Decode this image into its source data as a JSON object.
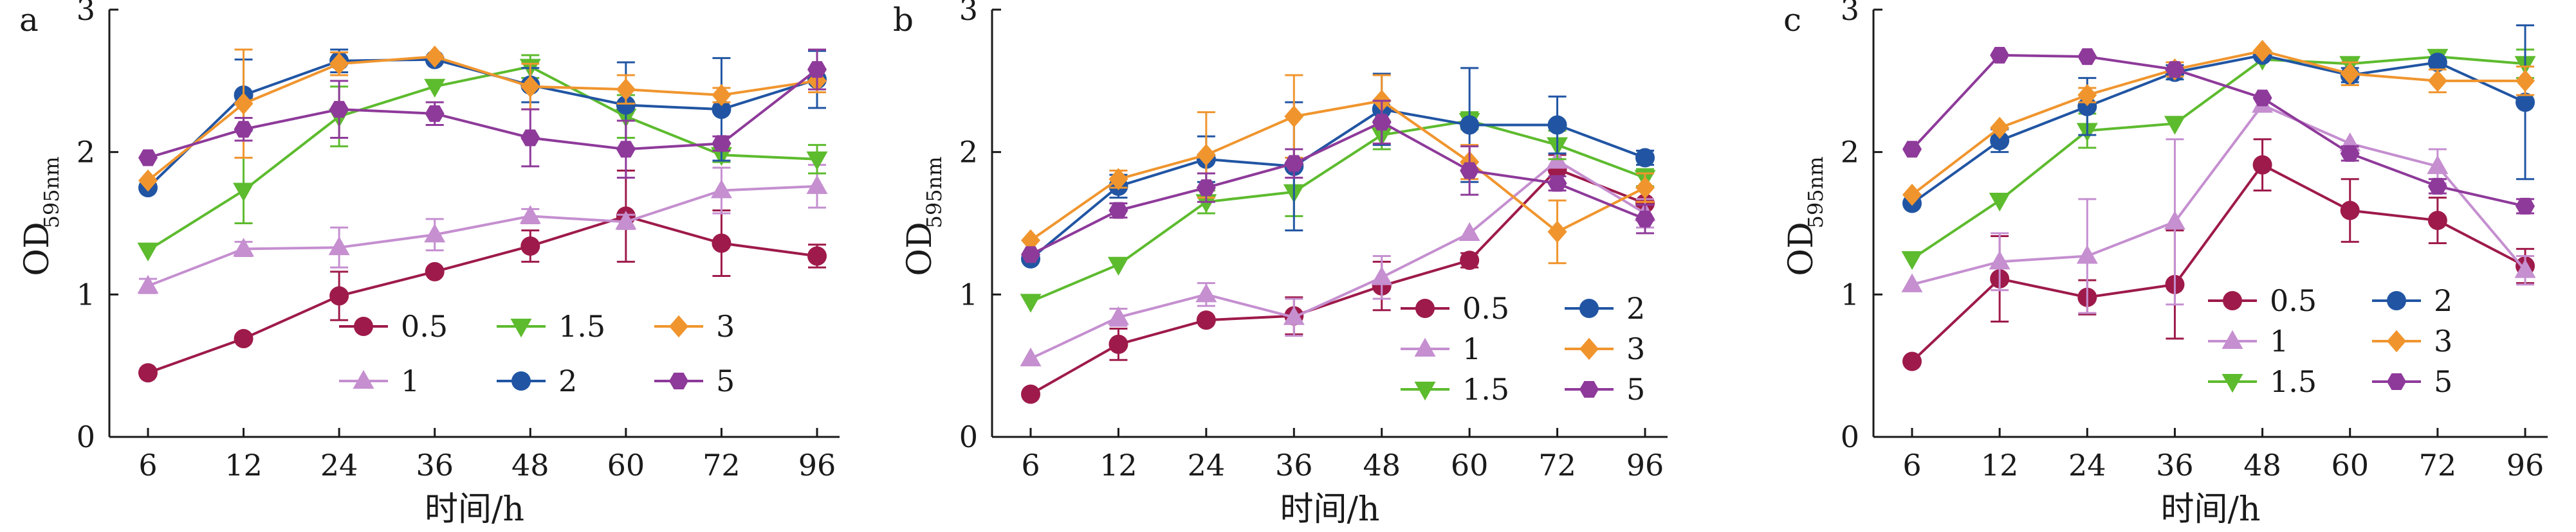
{
  "colors": {
    "0.5": "#9e1a4a",
    "1": "#c58fd0",
    "1.5": "#5dbb2e",
    "2": "#2155a3",
    "3": "#f0952e",
    "5": "#8e3a9a",
    "axis": "#1a1a1a"
  },
  "markers": {
    "0.5": "circle",
    "1": "triangle-up",
    "1.5": "triangle-down",
    "2": "circle",
    "3": "diamond",
    "5": "hexagon"
  },
  "chart_data": [
    {
      "type": "line",
      "panel_label": "a",
      "title": "",
      "xlabel": "时间/h",
      "ylabel_main": "OD",
      "ylabel_sub": "595nm",
      "categories": [
        "6",
        "12",
        "24",
        "36",
        "48",
        "60",
        "72",
        "96"
      ],
      "yticks": [
        "0",
        "1",
        "2",
        "3"
      ],
      "ylim": [
        0,
        3
      ],
      "legend_layout": "two-rows",
      "series": [
        {
          "name": "0.5",
          "values": [
            0.45,
            0.69,
            0.99,
            1.16,
            1.34,
            1.55,
            1.36,
            1.27
          ],
          "errors": [
            0.0,
            0.0,
            0.17,
            0.0,
            0.11,
            0.32,
            0.23,
            0.08
          ]
        },
        {
          "name": "1",
          "values": [
            1.06,
            1.32,
            1.33,
            1.42,
            1.55,
            1.51,
            1.73,
            1.76
          ],
          "errors": [
            0.05,
            0.05,
            0.14,
            0.11,
            0.05,
            0.05,
            0.16,
            0.15
          ]
        },
        {
          "name": "1.5",
          "values": [
            1.31,
            1.73,
            2.25,
            2.46,
            2.6,
            2.25,
            1.98,
            1.95
          ],
          "errors": [
            0.0,
            0.23,
            0.21,
            0.0,
            0.08,
            0.15,
            0.05,
            0.1
          ]
        },
        {
          "name": "2",
          "values": [
            1.75,
            2.4,
            2.64,
            2.65,
            2.47,
            2.33,
            2.3,
            2.51
          ],
          "errors": [
            0.0,
            0.25,
            0.08,
            0.0,
            0.12,
            0.3,
            0.36,
            0.2
          ]
        },
        {
          "name": "3",
          "values": [
            1.8,
            2.34,
            2.62,
            2.67,
            2.46,
            2.44,
            2.4,
            2.5
          ],
          "errors": [
            0.0,
            0.38,
            0.08,
            0.0,
            0.16,
            0.1,
            0.05,
            0.08
          ]
        },
        {
          "name": "5",
          "values": [
            1.96,
            2.16,
            2.3,
            2.27,
            2.1,
            2.02,
            2.06,
            2.58
          ],
          "errors": [
            0.0,
            0.08,
            0.2,
            0.08,
            0.2,
            0.2,
            0.05,
            0.14
          ]
        }
      ]
    },
    {
      "type": "line",
      "panel_label": "b",
      "title": "",
      "xlabel": "时间/h",
      "ylabel_main": "OD",
      "ylabel_sub": "595nm",
      "categories": [
        "6",
        "12",
        "24",
        "36",
        "48",
        "60",
        "72",
        "96"
      ],
      "yticks": [
        "0",
        "1",
        "2",
        "3"
      ],
      "ylim": [
        0,
        3
      ],
      "legend_layout": "two-columns",
      "series": [
        {
          "name": "0.5",
          "values": [
            0.3,
            0.65,
            0.82,
            0.85,
            1.06,
            1.24,
            1.88,
            1.64
          ],
          "errors": [
            0.0,
            0.11,
            0.0,
            0.13,
            0.17,
            0.05,
            0.1,
            0.12
          ]
        },
        {
          "name": "1",
          "values": [
            0.55,
            0.84,
            1.0,
            0.84,
            1.12,
            1.43,
            1.94,
            1.57
          ],
          "errors": [
            0.0,
            0.06,
            0.08,
            0.13,
            0.15,
            0.0,
            0.05,
            0.1
          ]
        },
        {
          "name": "1.5",
          "values": [
            0.95,
            1.21,
            1.65,
            1.72,
            2.12,
            2.22,
            2.05,
            1.82
          ],
          "errors": [
            0.0,
            0.0,
            0.08,
            0.17,
            0.1,
            0.06,
            0.1,
            0.06
          ]
        },
        {
          "name": "2",
          "values": [
            1.25,
            1.76,
            1.95,
            1.9,
            2.3,
            2.19,
            2.19,
            1.96
          ],
          "errors": [
            0.0,
            0.08,
            0.16,
            0.45,
            0.25,
            0.4,
            0.2,
            0.05
          ]
        },
        {
          "name": "3",
          "values": [
            1.38,
            1.81,
            1.98,
            2.25,
            2.36,
            1.93,
            1.44,
            1.75
          ],
          "errors": [
            0.0,
            0.06,
            0.3,
            0.29,
            0.18,
            0.12,
            0.22,
            0.1
          ]
        },
        {
          "name": "5",
          "values": [
            1.28,
            1.59,
            1.75,
            1.92,
            2.21,
            1.87,
            1.78,
            1.53
          ],
          "errors": [
            0.0,
            0.05,
            0.1,
            0.1,
            0.15,
            0.17,
            0.05,
            0.1
          ]
        }
      ]
    },
    {
      "type": "line",
      "panel_label": "c",
      "title": "",
      "xlabel": "时间/h",
      "ylabel_main": "OD",
      "ylabel_sub": "595nm",
      "categories": [
        "6",
        "12",
        "24",
        "36",
        "48",
        "60",
        "72",
        "96"
      ],
      "yticks": [
        "0",
        "1",
        "2",
        "3"
      ],
      "ylim": [
        0,
        3
      ],
      "legend_layout": "two-columns",
      "series": [
        {
          "name": "0.5",
          "values": [
            0.53,
            1.11,
            0.98,
            1.07,
            1.91,
            1.59,
            1.52,
            1.2
          ],
          "errors": [
            0.0,
            0.3,
            0.12,
            0.38,
            0.18,
            0.22,
            0.16,
            0.12
          ]
        },
        {
          "name": "1",
          "values": [
            1.07,
            1.23,
            1.27,
            1.51,
            2.33,
            2.06,
            1.9,
            1.17
          ],
          "errors": [
            0.0,
            0.2,
            0.4,
            0.58,
            0.0,
            0.0,
            0.12,
            0.1
          ]
        },
        {
          "name": "1.5",
          "values": [
            1.25,
            1.66,
            2.15,
            2.2,
            2.65,
            2.62,
            2.67,
            2.62
          ],
          "errors": [
            0.0,
            0.0,
            0.12,
            0.0,
            0.0,
            0.0,
            0.0,
            0.1
          ]
        },
        {
          "name": "2",
          "values": [
            1.64,
            2.08,
            2.32,
            2.56,
            2.68,
            2.54,
            2.63,
            2.35
          ],
          "errors": [
            0.0,
            0.08,
            0.2,
            0.05,
            0.0,
            0.05,
            0.0,
            0.54
          ]
        },
        {
          "name": "3",
          "values": [
            1.7,
            2.17,
            2.4,
            2.58,
            2.71,
            2.55,
            2.5,
            2.5
          ],
          "errors": [
            0.0,
            0.0,
            0.05,
            0.05,
            0.0,
            0.08,
            0.08,
            0.1
          ]
        },
        {
          "name": "5",
          "values": [
            2.02,
            2.68,
            2.67,
            2.58,
            2.38,
            1.99,
            1.76,
            1.62
          ],
          "errors": [
            0.0,
            0.0,
            0.0,
            0.0,
            0.0,
            0.05,
            0.05,
            0.05
          ]
        }
      ]
    }
  ]
}
